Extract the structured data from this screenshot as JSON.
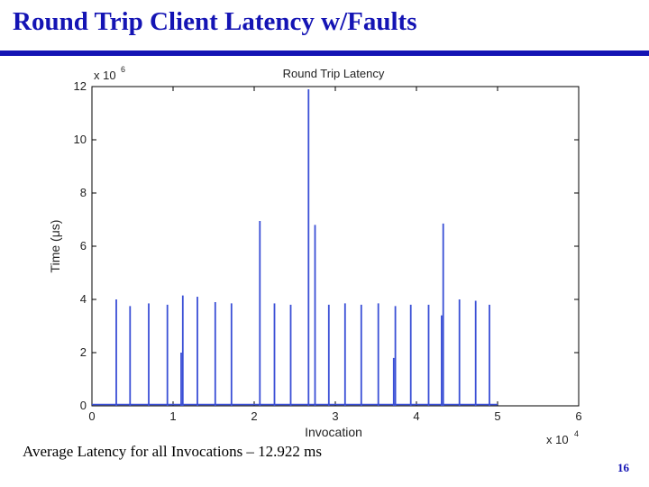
{
  "slide": {
    "title": "Round Trip Client Latency w/Faults",
    "footnote": "Average Latency for all Invocations – 12.922 ms",
    "page_number": "16"
  },
  "colors": {
    "title": "#1414b4",
    "line": "#3a4fd6"
  },
  "chart_data": {
    "type": "line",
    "title": "Round Trip Latency",
    "xlabel": "Invocation",
    "ylabel": "Time (μs)",
    "x_multiplier": "x 10",
    "x_multiplier_exp": "4",
    "y_multiplier": "x 10",
    "y_multiplier_exp": "6",
    "xlim": [
      0,
      6
    ],
    "ylim": [
      0,
      12
    ],
    "x_ticks": [
      "0",
      "1",
      "2",
      "3",
      "4",
      "5",
      "6"
    ],
    "y_ticks": [
      "0",
      "2",
      "4",
      "6",
      "8",
      "10",
      "12"
    ],
    "grid": false,
    "series": [
      {
        "spikes": [
          {
            "x": 0.3,
            "y": 4.0
          },
          {
            "x": 0.47,
            "y": 3.75
          },
          {
            "x": 0.7,
            "y": 3.85
          },
          {
            "x": 0.93,
            "y": 3.8
          },
          {
            "x": 1.1,
            "y": 2.0
          },
          {
            "x": 1.12,
            "y": 4.15
          },
          {
            "x": 1.3,
            "y": 4.1
          },
          {
            "x": 1.52,
            "y": 3.9
          },
          {
            "x": 1.72,
            "y": 3.85
          },
          {
            "x": 2.07,
            "y": 6.95
          },
          {
            "x": 2.25,
            "y": 3.85
          },
          {
            "x": 2.45,
            "y": 3.8
          },
          {
            "x": 2.67,
            "y": 11.9
          },
          {
            "x": 2.75,
            "y": 6.8
          },
          {
            "x": 2.92,
            "y": 3.8
          },
          {
            "x": 3.12,
            "y": 3.85
          },
          {
            "x": 3.32,
            "y": 3.8
          },
          {
            "x": 3.53,
            "y": 3.85
          },
          {
            "x": 3.72,
            "y": 1.8
          },
          {
            "x": 3.74,
            "y": 3.75
          },
          {
            "x": 3.93,
            "y": 3.8
          },
          {
            "x": 4.15,
            "y": 3.8
          },
          {
            "x": 4.31,
            "y": 3.4
          },
          {
            "x": 4.33,
            "y": 6.85
          },
          {
            "x": 4.53,
            "y": 4.0
          },
          {
            "x": 4.73,
            "y": 3.95
          },
          {
            "x": 4.9,
            "y": 3.8
          }
        ],
        "baseline": 0.05,
        "x_end": 5.0
      }
    ]
  }
}
